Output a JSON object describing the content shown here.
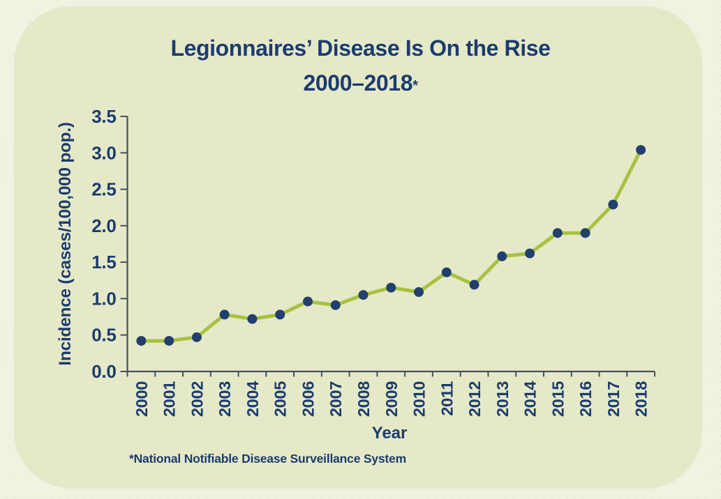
{
  "colors": {
    "outer_background": "#f1f2e2",
    "outer_dots": "#e3e5cd",
    "card_background": "#e5e9c8",
    "line": "#a7c23f",
    "marker": "#21406d",
    "axis": "#46505a",
    "text": "#1c3c6c"
  },
  "title": {
    "line1": "Legionnaires’ Disease Is On the Rise",
    "line2_years": "2000–2018",
    "footnote_marker": "*"
  },
  "footnote": "*National Notifiable Disease Surveillance System",
  "chart_data": {
    "type": "line",
    "title": "Legionnaires’ Disease Is On the Rise 2000–2018*",
    "xlabel": "Year",
    "ylabel": "Incidence (cases/100,000 pop.)",
    "categories": [
      "2000",
      "2001",
      "2002",
      "2003",
      "2004",
      "2005",
      "2006",
      "2007",
      "2008",
      "2009",
      "2010",
      "2011",
      "2012",
      "2013",
      "2014",
      "2015",
      "2016",
      "2017",
      "2018"
    ],
    "series": [
      {
        "name": "Incidence (cases/100,000 pop.)",
        "values": [
          0.42,
          0.42,
          0.47,
          0.78,
          0.72,
          0.78,
          0.96,
          0.91,
          1.05,
          1.15,
          1.09,
          1.36,
          1.19,
          1.58,
          1.62,
          1.9,
          1.9,
          2.29,
          3.04
        ]
      }
    ],
    "ylim": [
      0,
      3.5
    ],
    "ytick_step": 0.5,
    "yticks": [
      "0.0",
      "0.5",
      "1.0",
      "1.5",
      "2.0",
      "2.5",
      "3.0",
      "3.5"
    ],
    "grid": false,
    "legend": "none",
    "marker_shape": "circle",
    "source_note": "*National Notifiable Disease Surveillance System"
  }
}
